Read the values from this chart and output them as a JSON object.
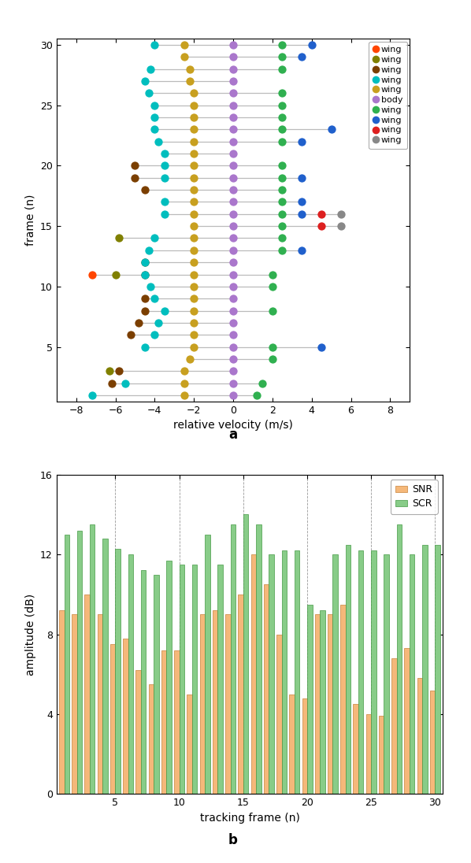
{
  "scatter": {
    "colors": {
      "orange": "#FF4500",
      "olive": "#808000",
      "brown": "#7B3F00",
      "cyan": "#00BEBE",
      "goldenrod": "#C8A020",
      "purple": "#AA77CC",
      "green": "#30B050",
      "blue": "#2060CC",
      "red": "#DD2020",
      "gray": "#888888"
    },
    "legend_labels": [
      "wing",
      "wing",
      "wing",
      "wing",
      "wing",
      "body",
      "wing",
      "wing",
      "wing",
      "wing"
    ],
    "legend_color_keys": [
      "orange",
      "olive",
      "brown",
      "cyan",
      "goldenrod",
      "purple",
      "green",
      "blue",
      "red",
      "gray"
    ],
    "series": {
      "orange": {
        "frames": [
          11
        ],
        "velocities": [
          -7.2
        ]
      },
      "olive": {
        "frames": [
          3,
          11,
          14
        ],
        "velocities": [
          -6.3,
          -6.0,
          -5.8
        ]
      },
      "brown": {
        "frames": [
          2,
          3,
          6,
          7,
          8,
          9,
          11,
          12,
          18,
          19,
          20
        ],
        "velocities": [
          -6.2,
          -5.8,
          -5.2,
          -4.8,
          -4.5,
          -4.5,
          -4.5,
          -4.5,
          -4.5,
          -5.0,
          -5.0
        ]
      },
      "cyan": {
        "frames": [
          1,
          2,
          5,
          6,
          7,
          8,
          9,
          10,
          11,
          12,
          13,
          14,
          16,
          17,
          19,
          20,
          21,
          22,
          23,
          24,
          25,
          26,
          27,
          28,
          30
        ],
        "velocities": [
          -7.2,
          -5.5,
          -4.5,
          -4.0,
          -3.8,
          -3.5,
          -4.0,
          -4.2,
          -4.5,
          -4.5,
          -4.3,
          -4.0,
          -3.5,
          -3.5,
          -3.5,
          -3.5,
          -3.5,
          -3.8,
          -4.0,
          -4.0,
          -4.0,
          -4.3,
          -4.5,
          -4.2,
          -4.0
        ]
      },
      "goldenrod": {
        "frames": [
          1,
          2,
          3,
          4,
          5,
          6,
          7,
          8,
          9,
          10,
          11,
          12,
          13,
          14,
          15,
          16,
          17,
          18,
          19,
          20,
          21,
          22,
          23,
          24,
          25,
          26,
          27,
          28,
          29,
          30
        ],
        "velocities": [
          -2.5,
          -2.5,
          -2.5,
          -2.2,
          -2.0,
          -2.0,
          -2.0,
          -2.0,
          -2.0,
          -2.0,
          -2.0,
          -2.0,
          -2.0,
          -2.0,
          -2.0,
          -2.0,
          -2.0,
          -2.0,
          -2.0,
          -2.0,
          -2.0,
          -2.0,
          -2.0,
          -2.0,
          -2.0,
          -2.0,
          -2.2,
          -2.2,
          -2.5,
          -2.5
        ]
      },
      "purple": {
        "frames": [
          1,
          2,
          3,
          4,
          5,
          6,
          7,
          8,
          9,
          10,
          11,
          12,
          13,
          14,
          15,
          16,
          17,
          18,
          19,
          20,
          21,
          22,
          23,
          24,
          25,
          26,
          27,
          28,
          29,
          30
        ],
        "velocities": [
          0.0,
          0.0,
          0.0,
          0.0,
          0.0,
          0.0,
          0.0,
          0.0,
          0.0,
          0.0,
          0.0,
          0.0,
          0.0,
          0.0,
          0.0,
          0.0,
          0.0,
          0.0,
          0.0,
          0.0,
          0.0,
          0.0,
          0.0,
          0.0,
          0.0,
          0.0,
          0.0,
          0.0,
          0.0,
          0.0
        ]
      },
      "green": {
        "frames": [
          1,
          2,
          4,
          5,
          8,
          10,
          11,
          13,
          14,
          15,
          16,
          17,
          18,
          19,
          20,
          22,
          23,
          24,
          25,
          26,
          28,
          29,
          30
        ],
        "velocities": [
          1.2,
          1.5,
          2.0,
          2.0,
          2.0,
          2.0,
          2.0,
          2.5,
          2.5,
          2.5,
          2.5,
          2.5,
          2.5,
          2.5,
          2.5,
          2.5,
          2.5,
          2.5,
          2.5,
          2.5,
          2.5,
          2.5,
          2.5
        ]
      },
      "blue": {
        "frames": [
          5,
          13,
          16,
          17,
          19,
          22,
          23,
          29,
          30
        ],
        "velocities": [
          4.5,
          3.5,
          3.5,
          3.5,
          3.5,
          3.5,
          5.0,
          3.5,
          4.0
        ]
      },
      "red": {
        "frames": [
          15,
          16
        ],
        "velocities": [
          4.5,
          4.5
        ]
      },
      "gray": {
        "frames": [
          15,
          16
        ],
        "velocities": [
          5.5,
          5.5
        ]
      }
    },
    "xlabel": "relative velocity (m/s)",
    "ylabel": "frame (n)",
    "xlim": [
      -9,
      9
    ],
    "ylim": [
      0.5,
      30.5
    ],
    "xticks": [
      -8,
      -6,
      -4,
      -2,
      0,
      2,
      4,
      6,
      8
    ],
    "yticks": [
      5,
      10,
      15,
      20,
      25,
      30
    ]
  },
  "bar": {
    "frames": [
      1,
      2,
      3,
      4,
      5,
      6,
      7,
      8,
      9,
      10,
      11,
      12,
      13,
      14,
      15,
      16,
      17,
      18,
      19,
      20,
      21,
      22,
      23,
      24,
      25,
      26,
      27,
      28,
      29,
      30
    ],
    "SNR": [
      9.2,
      9.0,
      10.0,
      9.0,
      7.5,
      7.8,
      6.2,
      5.5,
      7.2,
      7.2,
      5.0,
      9.0,
      9.2,
      9.0,
      10.0,
      12.0,
      10.5,
      8.0,
      5.0,
      4.8,
      9.0,
      9.0,
      9.5,
      4.5,
      4.0,
      3.9,
      6.8,
      7.3,
      5.8,
      5.2
    ],
    "SCR": [
      13.0,
      13.2,
      13.5,
      12.8,
      12.3,
      12.0,
      11.2,
      11.0,
      11.7,
      11.5,
      11.5,
      13.0,
      11.5,
      13.5,
      14.0,
      13.5,
      12.0,
      12.2,
      12.2,
      9.5,
      9.2,
      12.0,
      12.5,
      12.2,
      12.2,
      12.0,
      13.5,
      12.0,
      12.5,
      12.5
    ],
    "snr_color": "#F5B87A",
    "scr_color": "#88CC88",
    "snr_edge": "#C8823A",
    "scr_edge": "#449944",
    "xlabel": "tracking frame (n)",
    "ylabel": "amplitude (dB)",
    "ylim": [
      0,
      16
    ],
    "yticks": [
      0,
      4,
      8,
      12,
      16
    ],
    "xticks": [
      5,
      10,
      15,
      20,
      25,
      30
    ]
  }
}
